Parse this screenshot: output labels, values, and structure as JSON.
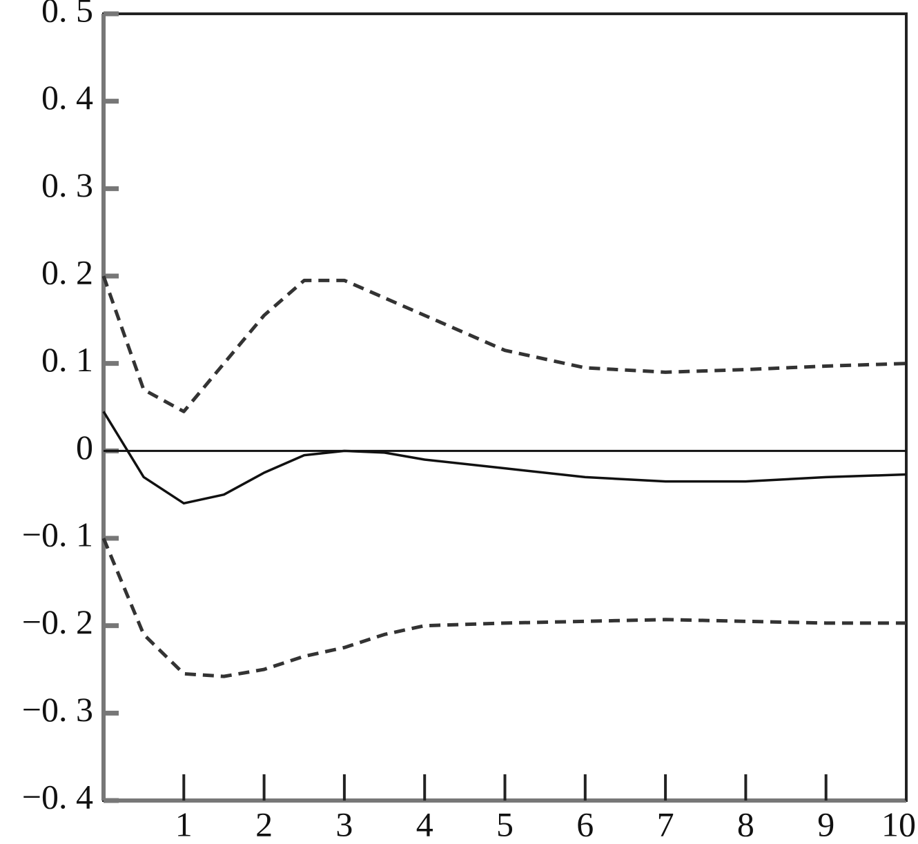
{
  "chart_data": {
    "type": "line",
    "x": [
      0,
      0.5,
      1,
      1.5,
      2,
      2.5,
      3,
      3.5,
      4,
      5,
      6,
      7,
      8,
      9,
      10
    ],
    "series": [
      {
        "color": "#111111",
        "style": "solid",
        "values": [
          0.045,
          -0.03,
          -0.06,
          -0.05,
          -0.025,
          -0.005,
          0,
          -0.002,
          -0.01,
          -0.02,
          -0.03,
          -0.035,
          -0.035,
          -0.03,
          -0.027
        ]
      },
      {
        "color": "#333333",
        "style": "dashed",
        "values": [
          0.2,
          0.07,
          0.045,
          0.1,
          0.155,
          0.195,
          0.195,
          0.175,
          0.155,
          0.115,
          0.095,
          0.09,
          0.093,
          0.097,
          0.1
        ]
      },
      {
        "color": "#333333",
        "style": "dashed",
        "values": [
          -0.1,
          -0.21,
          -0.255,
          -0.258,
          -0.25,
          -0.235,
          -0.225,
          -0.21,
          -0.2,
          -0.197,
          -0.195,
          -0.193,
          -0.195,
          -0.197,
          -0.197
        ]
      }
    ],
    "xlim": [
      0,
      10
    ],
    "xticks": [
      1,
      2,
      3,
      4,
      5,
      6,
      7,
      8,
      9,
      10
    ],
    "ylim": [
      -0.4,
      0.5
    ],
    "yticks": [
      {
        "value": -0.4,
        "label": "−0. 4"
      },
      {
        "value": -0.3,
        "label": "−0. 3"
      },
      {
        "value": -0.2,
        "label": "−0. 2"
      },
      {
        "value": -0.1,
        "label": "−0. 1"
      },
      0,
      {
        "value": 0.1,
        "label": "0. 1"
      },
      {
        "value": 0.2,
        "label": "0. 2"
      },
      {
        "value": 0.3,
        "label": "0. 3"
      },
      {
        "value": 0.4,
        "label": "0. 4"
      },
      {
        "value": 0.5,
        "label": "0. 5"
      }
    ],
    "zero_line": true,
    "grid": false
  }
}
